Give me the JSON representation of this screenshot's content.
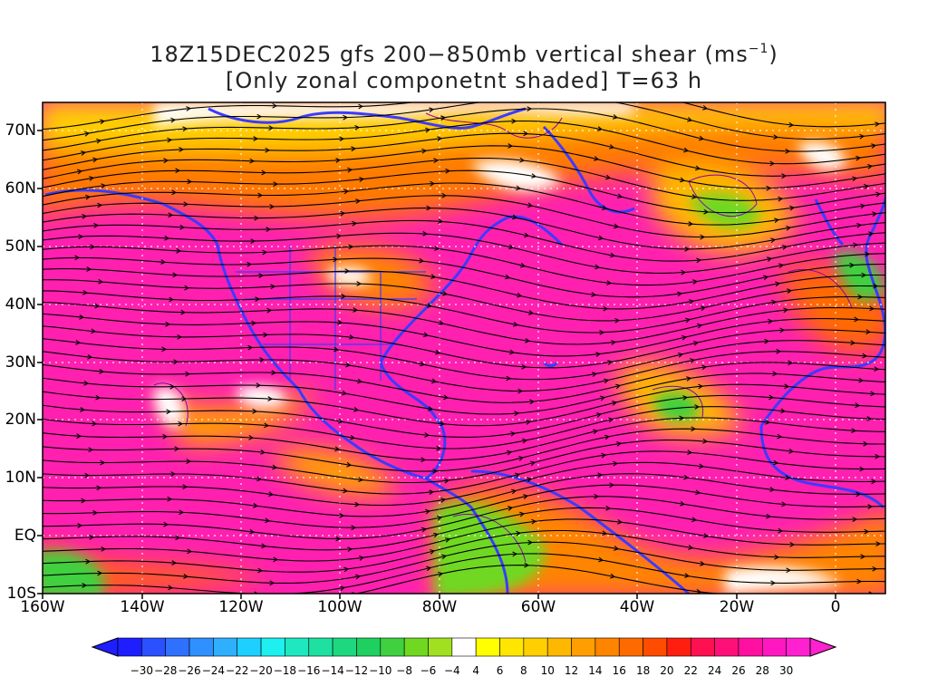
{
  "title": {
    "line1_pre": "18Z15DEC2025 gfs 200−850mb vertical shear (ms",
    "line1_sup": "−1",
    "line1_post": ")",
    "line2": "[Only zonal componetnt shaded] T=63 h"
  },
  "map": {
    "region": "160W to 10E, 10S to 75N",
    "lat_labels": [
      "70N",
      "60N",
      "50N",
      "40N",
      "30N",
      "20N",
      "10N",
      "EQ",
      "10S"
    ],
    "lon_labels": [
      "160W",
      "140W",
      "120W",
      "100W",
      "80W",
      "60W",
      "40W",
      "20W",
      "0"
    ],
    "gridlines": true,
    "coastline_color": "#3b3bff",
    "streamline_color": "#000000",
    "contour_color": "#8b00b0"
  },
  "colorbar": {
    "labels": [
      "−30",
      "−28",
      "−26",
      "−24",
      "−22",
      "−20",
      "−18",
      "−16",
      "−14",
      "−12",
      "−10",
      "−8",
      "−6",
      "−4",
      "4",
      "6",
      "8",
      "10",
      "12",
      "14",
      "16",
      "18",
      "20",
      "22",
      "24",
      "26",
      "28",
      "30"
    ],
    "colors": [
      "#1e1eff",
      "#2a50ff",
      "#2f70ff",
      "#2f90ff",
      "#2fb0ff",
      "#1ed0ff",
      "#1ef0f0",
      "#1ee8c0",
      "#1ee0a0",
      "#1ed880",
      "#1ed060",
      "#40d040",
      "#70d820",
      "#a0e020",
      "#ffffff",
      "#ffff00",
      "#ffe600",
      "#ffcf00",
      "#ffb800",
      "#ff9e00",
      "#ff8400",
      "#ff6a00",
      "#ff4c00",
      "#ff1e10",
      "#ff1050",
      "#ff1078",
      "#ff10a0",
      "#ff18c0",
      "#ff20d0"
    ]
  }
}
